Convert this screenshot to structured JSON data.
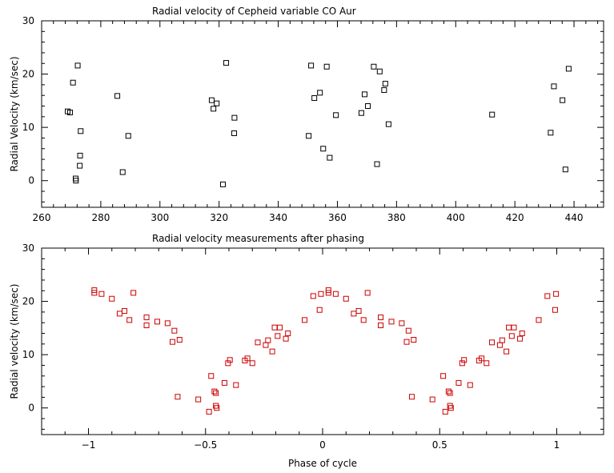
{
  "chart_data": [
    {
      "type": "scatter",
      "title": "Radial velocity of Cepheid variable CO Aur",
      "xlabel": "",
      "ylabel": "Radial Velocity (km/sec)",
      "xlim": [
        260,
        450
      ],
      "ylim": [
        -5,
        30
      ],
      "xticks": [
        260,
        280,
        300,
        320,
        340,
        360,
        380,
        400,
        420,
        440
      ],
      "yticks": [
        0,
        10,
        20,
        30
      ],
      "marker_color": "#000000",
      "series": [
        {
          "x": [
            268.8,
            269.6,
            270.6,
            271.5,
            271.6,
            272.2,
            272.9,
            273.0,
            273.2,
            285.6,
            287.4,
            289.3,
            317.5,
            318.1,
            319.2,
            321.3,
            322.4,
            325.1,
            325.2,
            350.3,
            351.1,
            352.2,
            354.1,
            355.2,
            356.4,
            357.4,
            359.5,
            368.1,
            369.2,
            370.3,
            372.3,
            373.4,
            374.3,
            375.8,
            376.2,
            377.3,
            412.3,
            432.1,
            433.2,
            436.1,
            437.1,
            438.2
          ],
          "y": [
            13.0,
            12.8,
            18.4,
            0.4,
            0.0,
            21.6,
            2.8,
            4.7,
            9.3,
            15.9,
            1.6,
            8.4,
            15.1,
            13.5,
            14.5,
            -0.7,
            22.1,
            8.9,
            11.8,
            8.4,
            21.6,
            15.5,
            16.5,
            6.0,
            21.4,
            4.3,
            12.3,
            12.7,
            16.2,
            14.0,
            21.4,
            3.1,
            20.5,
            17.0,
            18.2,
            10.6,
            12.4,
            9.0,
            17.7,
            15.1,
            2.1,
            21.0
          ]
        }
      ]
    },
    {
      "type": "scatter",
      "title": "Radial velocity measurements after phasing",
      "xlabel": "Phase of cycle",
      "ylabel": "Radial velocity (km/sec)",
      "xlim": [
        -1.2,
        1.2
      ],
      "ylim": [
        -5,
        30
      ],
      "xticks": [
        -1,
        -0.5,
        0,
        0.5,
        1
      ],
      "xticklabels": [
        "−1",
        "−0.5",
        "0",
        "0.5",
        "1"
      ],
      "yticks": [
        0,
        10,
        20,
        30
      ],
      "marker_color": "#cc0000",
      "series": [
        {
          "x": [
            -0.975,
            -0.975,
            -0.944,
            -0.9,
            -0.867,
            -0.846,
            -0.825,
            -0.808,
            -0.752,
            -0.752,
            -0.706,
            -0.662,
            -0.641,
            -0.633,
            -0.619,
            -0.611,
            -0.531,
            -0.485,
            -0.476,
            -0.462,
            -0.456,
            -0.456,
            -0.452,
            -0.419,
            -0.404,
            -0.396,
            -0.37,
            -0.332,
            -0.321,
            -0.3,
            -0.277,
            -0.243,
            -0.233,
            -0.215,
            -0.205,
            -0.192,
            -0.183,
            -0.157,
            -0.148,
            -0.077,
            -0.04,
            -0.013,
            -0.007,
            0.025,
            0.025,
            0.056,
            0.1,
            0.133,
            0.154,
            0.175,
            0.192,
            0.248,
            0.248,
            0.294,
            0.338,
            0.359,
            0.367,
            0.381,
            0.389,
            0.469,
            0.515,
            0.524,
            0.538,
            0.544,
            0.544,
            0.548,
            0.581,
            0.596,
            0.604,
            0.63,
            0.668,
            0.679,
            0.7,
            0.723,
            0.757,
            0.767,
            0.785,
            0.795,
            0.808,
            0.817,
            0.843,
            0.852,
            0.923,
            0.96,
            0.993,
            0.997
          ],
          "y": [
            22.1,
            21.6,
            21.4,
            20.5,
            17.7,
            18.2,
            16.5,
            21.6,
            17.0,
            15.5,
            16.2,
            15.9,
            12.4,
            14.5,
            2.1,
            12.8,
            1.6,
            -0.7,
            6.0,
            3.1,
            2.8,
            0.4,
            0.0,
            4.7,
            8.4,
            9.0,
            4.3,
            8.9,
            9.3,
            8.4,
            12.3,
            11.8,
            12.7,
            10.6,
            15.1,
            13.5,
            15.1,
            13.0,
            14.0,
            16.5,
            21.0,
            18.4,
            21.4,
            22.1,
            21.6,
            21.4,
            20.5,
            17.7,
            18.2,
            16.5,
            21.6,
            17.0,
            15.5,
            16.2,
            15.9,
            12.4,
            14.5,
            2.1,
            12.8,
            1.6,
            6.0,
            -0.7,
            3.1,
            2.8,
            0.4,
            0.0,
            4.7,
            8.4,
            9.0,
            4.3,
            8.9,
            9.3,
            8.4,
            12.3,
            11.8,
            12.7,
            10.6,
            15.1,
            13.5,
            15.1,
            13.0,
            14.0,
            16.5,
            21.0,
            18.4,
            21.4
          ]
        }
      ]
    }
  ]
}
